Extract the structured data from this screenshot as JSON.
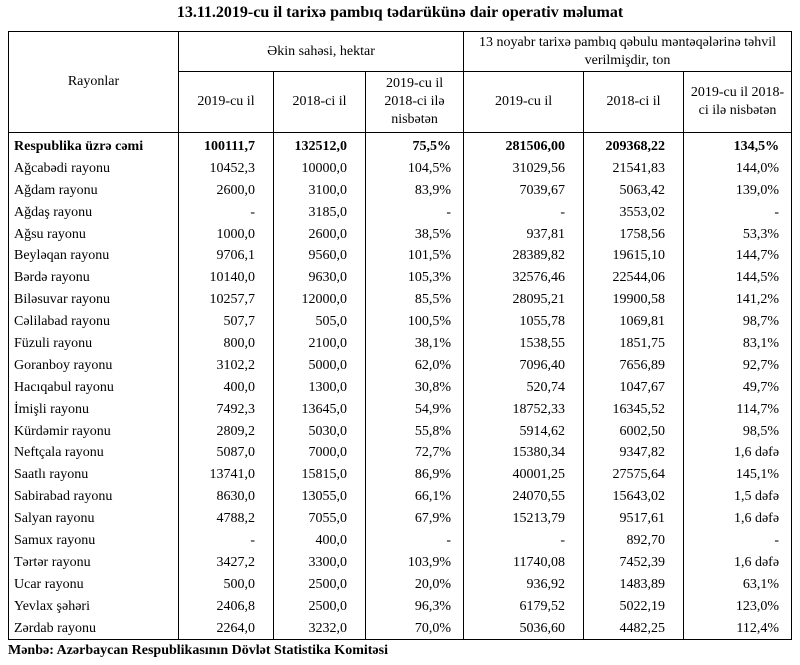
{
  "header": {
    "title": "13.11.2019-cu il tarixə pambıq tədarükünə dair operativ məlumat"
  },
  "table": {
    "columns": {
      "district": "Rayonlar",
      "area_group": "Əkin sahəsi, hektar",
      "delivery_group": "13 noyabr tarixə pambıq qəbulu məntəqələrinə təhvil verilmişdir, ton",
      "sub": [
        "2019-cu il",
        "2018-ci il",
        "2019-cu il 2018-ci ilə nisbətən",
        "2019-cu il",
        "2018-ci il",
        "2019-cu il 2018-ci ilə nisbətən"
      ]
    },
    "rows": [
      [
        "Respublika üzrə cəmi",
        "100111,7",
        "132512,0",
        "75,5%",
        "281506,00",
        "209368,22",
        "134,5%"
      ],
      [
        "Ağcabədi rayonu",
        "10452,3",
        "10000,0",
        "104,5%",
        "31029,56",
        "21541,83",
        "144,0%"
      ],
      [
        "Ağdam rayonu",
        "2600,0",
        "3100,0",
        "83,9%",
        "7039,67",
        "5063,42",
        "139,0%"
      ],
      [
        "Ağdaş rayonu",
        "-",
        "3185,0",
        "-",
        "-",
        "3553,02",
        "-"
      ],
      [
        "Ağsu rayonu",
        "1000,0",
        "2600,0",
        "38,5%",
        "937,81",
        "1758,56",
        "53,3%"
      ],
      [
        "Beyləqan rayonu",
        "9706,1",
        "9560,0",
        "101,5%",
        "28389,82",
        "19615,10",
        "144,7%"
      ],
      [
        "Bərdə rayonu",
        "10140,0",
        "9630,0",
        "105,3%",
        "32576,46",
        "22544,06",
        "144,5%"
      ],
      [
        "Biləsuvar rayonu",
        "10257,7",
        "12000,0",
        "85,5%",
        "28095,21",
        "19900,58",
        "141,2%"
      ],
      [
        "Cəlilabad rayonu",
        "507,7",
        "505,0",
        "100,5%",
        "1055,78",
        "1069,81",
        "98,7%"
      ],
      [
        "Füzuli rayonu",
        "800,0",
        "2100,0",
        "38,1%",
        "1538,55",
        "1851,75",
        "83,1%"
      ],
      [
        "Goranboy rayonu",
        "3102,2",
        "5000,0",
        "62,0%",
        "7096,40",
        "7656,89",
        "92,7%"
      ],
      [
        "Hacıqabul rayonu",
        "400,0",
        "1300,0",
        "30,8%",
        "520,74",
        "1047,67",
        "49,7%"
      ],
      [
        "İmişli rayonu",
        "7492,3",
        "13645,0",
        "54,9%",
        "18752,33",
        "16345,52",
        "114,7%"
      ],
      [
        "Kürdəmir rayonu",
        "2809,2",
        "5030,0",
        "55,8%",
        "5914,62",
        "6002,50",
        "98,5%"
      ],
      [
        "Neftçala rayonu",
        "5087,0",
        "7000,0",
        "72,7%",
        "15380,34",
        "9347,82",
        "1,6 dəfə"
      ],
      [
        "Saatlı rayonu",
        "13741,0",
        "15815,0",
        "86,9%",
        "40001,25",
        "27575,64",
        "145,1%"
      ],
      [
        "Sabirabad rayonu",
        "8630,0",
        "13055,0",
        "66,1%",
        "24070,55",
        "15643,02",
        "1,5 dəfə"
      ],
      [
        "Salyan rayonu",
        "4788,2",
        "7055,0",
        "67,9%",
        "15213,79",
        "9517,61",
        "1,6 dəfə"
      ],
      [
        "Samux rayonu",
        "-",
        "400,0",
        "-",
        "-",
        "892,70",
        "-"
      ],
      [
        "Tərtər rayonu",
        "3427,2",
        "3300,0",
        "103,9%",
        "11740,08",
        "7452,39",
        "1,6 dəfə"
      ],
      [
        "Ucar rayonu",
        "500,0",
        "2500,0",
        "20,0%",
        "936,92",
        "1483,89",
        "63,1%"
      ],
      [
        "Yevlax şəhəri",
        "2406,8",
        "2500,0",
        "96,3%",
        "6179,52",
        "5022,19",
        "123,0%"
      ],
      [
        "Zərdab rayonu",
        "2264,0",
        "3232,0",
        "70,0%",
        "5036,60",
        "4482,25",
        "112,4%"
      ]
    ]
  },
  "footer": {
    "source": "Mənbə: Azərbaycan Respublikasının Dövlət Statistika Komitəsi"
  }
}
